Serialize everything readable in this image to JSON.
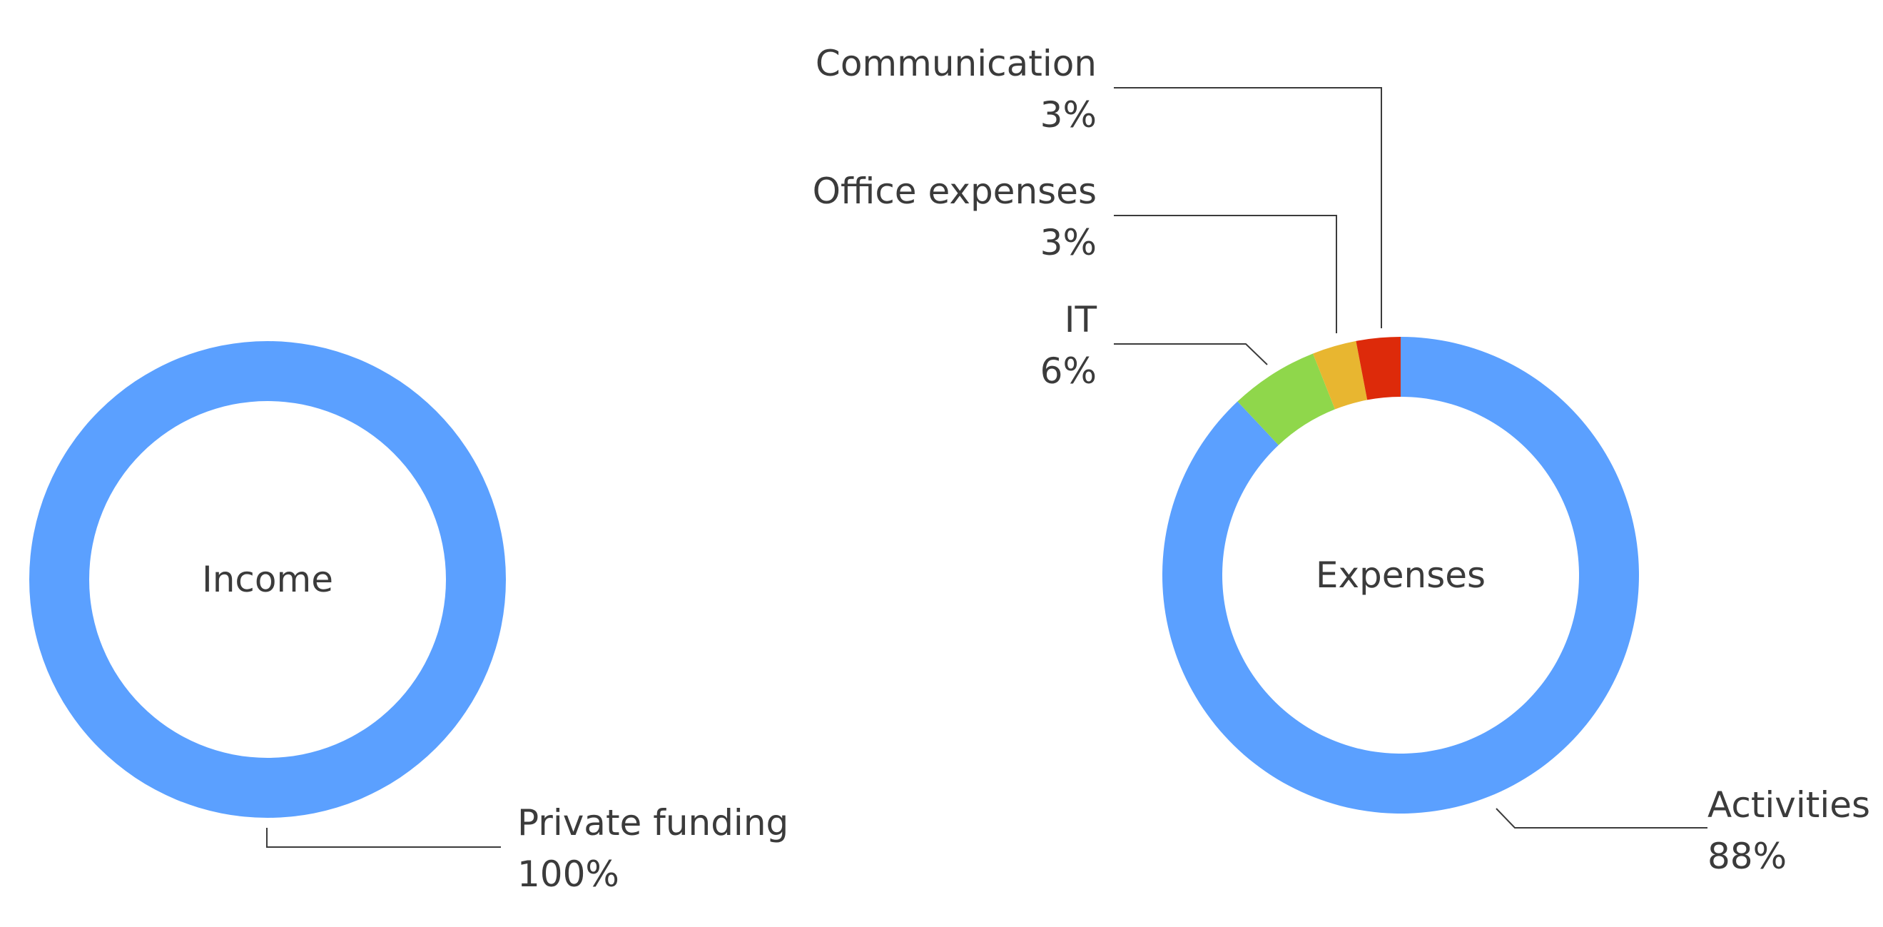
{
  "chart_data": [
    {
      "type": "pie",
      "center_label": "Income",
      "slices": [
        {
          "label": "Private funding",
          "percent_label": "100%",
          "value": 100,
          "color": "#5ba0ff"
        }
      ]
    },
    {
      "type": "pie",
      "center_label": "Expenses",
      "slices": [
        {
          "label": "Activities",
          "percent_label": "88%",
          "value": 88,
          "color": "#5ba0ff"
        },
        {
          "label": "IT",
          "percent_label": "6%",
          "value": 6,
          "color": "#8fd74b"
        },
        {
          "label": "Office expenses",
          "percent_label": "3%",
          "value": 3,
          "color": "#e8b630"
        },
        {
          "label": "Communication",
          "percent_label": "3%",
          "value": 3,
          "color": "#dd2a0a"
        }
      ]
    }
  ]
}
